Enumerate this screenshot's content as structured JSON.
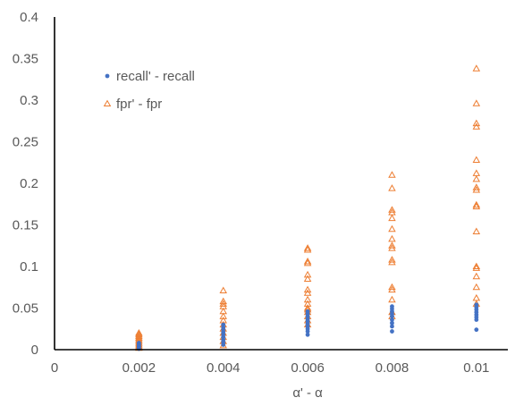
{
  "chart_data": {
    "type": "scatter",
    "title": "",
    "xlabel": "α' - α",
    "ylabel": "",
    "xlim": [
      0,
      0.011
    ],
    "ylim": [
      0,
      0.4
    ],
    "x_ticks": [
      0,
      0.002,
      0.004,
      0.006,
      0.008,
      0.01
    ],
    "x_tick_labels": [
      "0",
      "0.002",
      "0.004",
      "0.006",
      "0.008",
      "0.01"
    ],
    "y_ticks": [
      0,
      0.05,
      0.1,
      0.15,
      0.2,
      0.25,
      0.3,
      0.35,
      0.4
    ],
    "y_tick_labels": [
      "0",
      "0.05",
      "0.1",
      "0.15",
      "0.2",
      "0.25",
      "0.3",
      "0.35",
      "0.4"
    ],
    "grid": false,
    "legend_position": "top-left",
    "series": [
      {
        "name": "recall' - recall",
        "marker": "circle",
        "color": "#4472C4",
        "points": [
          [
            0.002,
            0.001
          ],
          [
            0.002,
            0.002
          ],
          [
            0.002,
            0.003
          ],
          [
            0.002,
            0.004
          ],
          [
            0.002,
            0.005
          ],
          [
            0.002,
            0.006
          ],
          [
            0.002,
            0.007
          ],
          [
            0.002,
            0.008
          ],
          [
            0.004,
            0.006
          ],
          [
            0.004,
            0.009
          ],
          [
            0.004,
            0.012
          ],
          [
            0.004,
            0.015
          ],
          [
            0.004,
            0.018
          ],
          [
            0.004,
            0.021
          ],
          [
            0.004,
            0.024
          ],
          [
            0.004,
            0.027
          ],
          [
            0.004,
            0.03
          ],
          [
            0.006,
            0.018
          ],
          [
            0.006,
            0.022
          ],
          [
            0.006,
            0.025
          ],
          [
            0.006,
            0.028
          ],
          [
            0.006,
            0.031
          ],
          [
            0.006,
            0.034
          ],
          [
            0.006,
            0.037
          ],
          [
            0.006,
            0.04
          ],
          [
            0.006,
            0.043
          ],
          [
            0.006,
            0.046
          ],
          [
            0.008,
            0.022
          ],
          [
            0.008,
            0.028
          ],
          [
            0.008,
            0.032
          ],
          [
            0.008,
            0.036
          ],
          [
            0.008,
            0.04
          ],
          [
            0.008,
            0.043
          ],
          [
            0.008,
            0.046
          ],
          [
            0.008,
            0.049
          ],
          [
            0.008,
            0.052
          ],
          [
            0.01,
            0.024
          ],
          [
            0.01,
            0.036
          ],
          [
            0.01,
            0.039
          ],
          [
            0.01,
            0.042
          ],
          [
            0.01,
            0.045
          ],
          [
            0.01,
            0.048
          ],
          [
            0.01,
            0.051
          ],
          [
            0.01,
            0.054
          ]
        ]
      },
      {
        "name": "fpr' - fpr",
        "marker": "triangle",
        "color": "#ED7D31",
        "points": [
          [
            0.002,
            0.002
          ],
          [
            0.002,
            0.004
          ],
          [
            0.002,
            0.006
          ],
          [
            0.002,
            0.008
          ],
          [
            0.002,
            0.01
          ],
          [
            0.002,
            0.012
          ],
          [
            0.002,
            0.014
          ],
          [
            0.002,
            0.016
          ],
          [
            0.002,
            0.018
          ],
          [
            0.002,
            0.02
          ],
          [
            0.004,
            0.005
          ],
          [
            0.004,
            0.01
          ],
          [
            0.004,
            0.015
          ],
          [
            0.004,
            0.02
          ],
          [
            0.004,
            0.025
          ],
          [
            0.004,
            0.03
          ],
          [
            0.004,
            0.035
          ],
          [
            0.004,
            0.04
          ],
          [
            0.004,
            0.046
          ],
          [
            0.004,
            0.052
          ],
          [
            0.004,
            0.055
          ],
          [
            0.004,
            0.058
          ],
          [
            0.004,
            0.071
          ],
          [
            0.006,
            0.03
          ],
          [
            0.006,
            0.035
          ],
          [
            0.006,
            0.04
          ],
          [
            0.006,
            0.045
          ],
          [
            0.006,
            0.048
          ],
          [
            0.006,
            0.05
          ],
          [
            0.006,
            0.055
          ],
          [
            0.006,
            0.06
          ],
          [
            0.006,
            0.068
          ],
          [
            0.006,
            0.072
          ],
          [
            0.006,
            0.085
          ],
          [
            0.006,
            0.09
          ],
          [
            0.006,
            0.104
          ],
          [
            0.006,
            0.106
          ],
          [
            0.006,
            0.12
          ],
          [
            0.006,
            0.122
          ],
          [
            0.008,
            0.04
          ],
          [
            0.008,
            0.045
          ],
          [
            0.008,
            0.06
          ],
          [
            0.008,
            0.072
          ],
          [
            0.008,
            0.075
          ],
          [
            0.008,
            0.105
          ],
          [
            0.008,
            0.108
          ],
          [
            0.008,
            0.122
          ],
          [
            0.008,
            0.125
          ],
          [
            0.008,
            0.133
          ],
          [
            0.008,
            0.145
          ],
          [
            0.008,
            0.158
          ],
          [
            0.008,
            0.165
          ],
          [
            0.008,
            0.168
          ],
          [
            0.008,
            0.194
          ],
          [
            0.008,
            0.21
          ],
          [
            0.01,
            0.055
          ],
          [
            0.01,
            0.062
          ],
          [
            0.01,
            0.075
          ],
          [
            0.01,
            0.088
          ],
          [
            0.01,
            0.098
          ],
          [
            0.01,
            0.1
          ],
          [
            0.01,
            0.142
          ],
          [
            0.01,
            0.172
          ],
          [
            0.01,
            0.174
          ],
          [
            0.01,
            0.192
          ],
          [
            0.01,
            0.195
          ],
          [
            0.01,
            0.205
          ],
          [
            0.01,
            0.212
          ],
          [
            0.01,
            0.228
          ],
          [
            0.01,
            0.268
          ],
          [
            0.01,
            0.272
          ],
          [
            0.01,
            0.296
          ],
          [
            0.01,
            0.338
          ]
        ]
      }
    ]
  },
  "colors": {
    "axis": "#000000",
    "tick_text": "#595959"
  }
}
